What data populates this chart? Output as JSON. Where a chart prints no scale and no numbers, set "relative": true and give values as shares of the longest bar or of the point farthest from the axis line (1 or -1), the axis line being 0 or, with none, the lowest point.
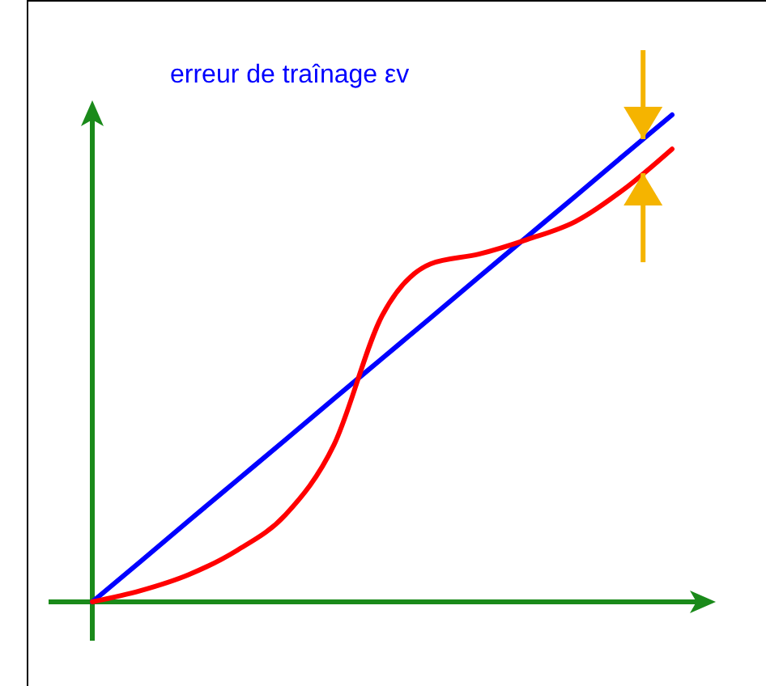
{
  "chart_data": {
    "type": "line",
    "relative": true,
    "categories": [
      null,
      null,
      null,
      null,
      null,
      null,
      null,
      null,
      null,
      null,
      null,
      null,
      null
    ],
    "series": [
      {
        "color": "#0000ff",
        "values": [
          0,
          0.083,
          0.167,
          0.25,
          0.333,
          0.417,
          0.5,
          0.583,
          0.667,
          0.75,
          0.833,
          0.917,
          1
        ]
      },
      {
        "color": "#ff0000",
        "values": [
          0,
          0.023,
          0.056,
          0.106,
          0.179,
          0.322,
          0.588,
          0.694,
          0.714,
          0.744,
          0.781,
          0.847,
          0.93
        ]
      }
    ],
    "annotations": [
      "erreur de traînage εv"
    ]
  }
}
